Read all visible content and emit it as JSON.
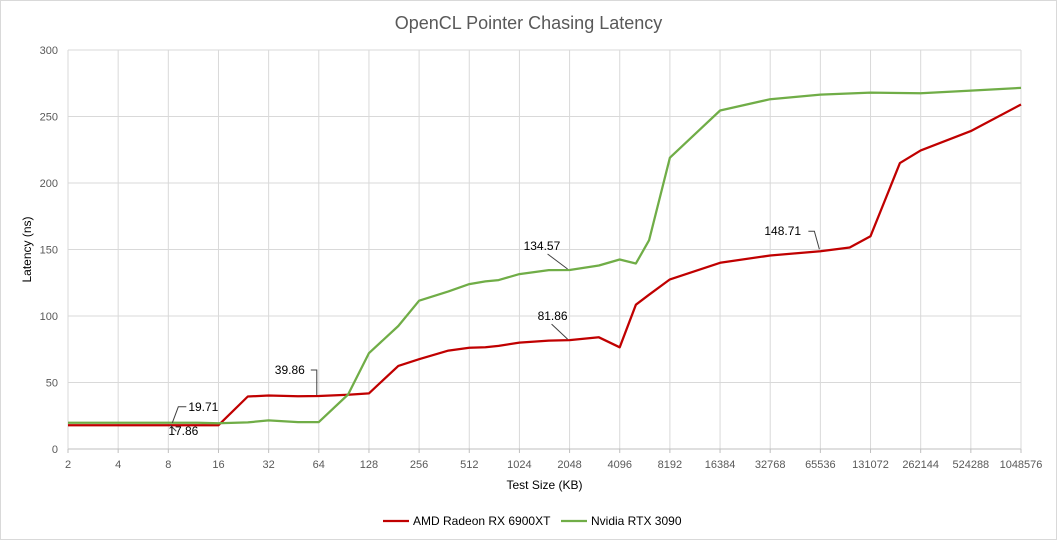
{
  "chart_data": {
    "type": "line",
    "title": "OpenCL Pointer Chasing Latency",
    "xlabel": "Test Size (KB)",
    "ylabel": "Latency (ns)",
    "x_scale": "log2",
    "x_ticks": [
      2,
      4,
      8,
      16,
      32,
      64,
      128,
      256,
      512,
      1024,
      2048,
      4096,
      8192,
      16384,
      32768,
      65536,
      131072,
      262144,
      524288,
      1048576
    ],
    "x_tick_labels": [
      "2",
      "4",
      "8",
      "16",
      "32",
      "64",
      "128",
      "256",
      "512",
      "1024",
      "2048",
      "4096",
      "8192",
      "16384",
      "32768",
      "65536",
      "131072",
      "262144",
      "524288",
      "1048576"
    ],
    "y_ticks": [
      0,
      50,
      100,
      150,
      200,
      250,
      300
    ],
    "y_tick_labels": [
      "0",
      "50",
      "100",
      "150",
      "200",
      "250",
      "300"
    ],
    "ylim": [
      0,
      300
    ],
    "grid": true,
    "legend_position": "bottom",
    "series": [
      {
        "name": "AMD Radeon RX 6900XT",
        "color": "#c00000",
        "x": [
          2,
          4,
          8,
          12,
          16,
          24,
          32,
          48,
          64,
          96,
          128,
          192,
          256,
          384,
          512,
          640,
          768,
          1024,
          1536,
          2048,
          3072,
          4096,
          5120,
          6144,
          8192,
          16384,
          32768,
          65536,
          98304,
          131072,
          196608,
          262144,
          524288,
          1048576
        ],
        "y": [
          17.86,
          17.86,
          17.86,
          17.86,
          17.86,
          39.5,
          40.2,
          39.6,
          39.86,
          40.8,
          41.8,
          62.5,
          67.5,
          74,
          76.2,
          76.5,
          77.5,
          80,
          81.5,
          81.86,
          84,
          76.5,
          108.5,
          116,
          127.5,
          140,
          145.5,
          148.71,
          151.5,
          160,
          215,
          224.5,
          239,
          259
        ]
      },
      {
        "name": "Nvidia RTX 3090",
        "color": "#70ad47",
        "x": [
          2,
          4,
          8,
          12,
          16,
          24,
          32,
          48,
          64,
          96,
          128,
          192,
          256,
          384,
          512,
          640,
          768,
          1024,
          1536,
          2048,
          3072,
          4096,
          5120,
          6144,
          8192,
          16384,
          32768,
          65536,
          131072,
          262144,
          524288,
          1048576
        ],
        "y": [
          19.71,
          19.71,
          19.71,
          19.71,
          19.3,
          20,
          21.5,
          20.2,
          20.2,
          41,
          72,
          92.5,
          111.5,
          118.5,
          124,
          126,
          127,
          131.5,
          134.5,
          134.57,
          138,
          142.5,
          139.5,
          157,
          219,
          254.5,
          263,
          266.5,
          268,
          267.5,
          269.5,
          271.5
        ]
      }
    ],
    "annotations": [
      {
        "text": "19.71",
        "x": 8,
        "y": 19.71
      },
      {
        "text": "17.86",
        "x": 8,
        "y": 17.86
      },
      {
        "text": "39.86",
        "x": 64,
        "y": 39.86
      },
      {
        "text": "134.57",
        "x": 2048,
        "y": 134.57
      },
      {
        "text": "81.86",
        "x": 2048,
        "y": 81.86
      },
      {
        "text": "148.71",
        "x": 65536,
        "y": 148.71
      }
    ]
  }
}
